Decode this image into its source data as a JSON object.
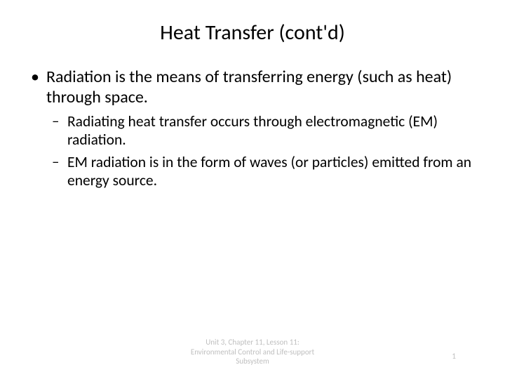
{
  "slide": {
    "title": "Heat Transfer (cont'd)",
    "bullets": {
      "main": "Radiation is the means of transferring energy (such as heat) through space.",
      "sub1": "Radiating heat transfer occurs through electromagnetic (EM) radiation.",
      "sub2": "EM radiation is in the form of waves (or particles) emitted from an energy source."
    },
    "footer": {
      "line1": "Unit 3, Chapter 11, Lesson 11:",
      "line2": "Environmental Control and Life-support",
      "line3": "Subsystem"
    },
    "page_number": "1"
  },
  "style": {
    "background_color": "#ffffff",
    "text_color": "#000000",
    "footer_color": "#bfbfbf",
    "title_fontsize": 30,
    "body_fontsize": 24,
    "sub_fontsize": 21.5,
    "footer_fontsize": 11,
    "font_family": "Calibri"
  }
}
